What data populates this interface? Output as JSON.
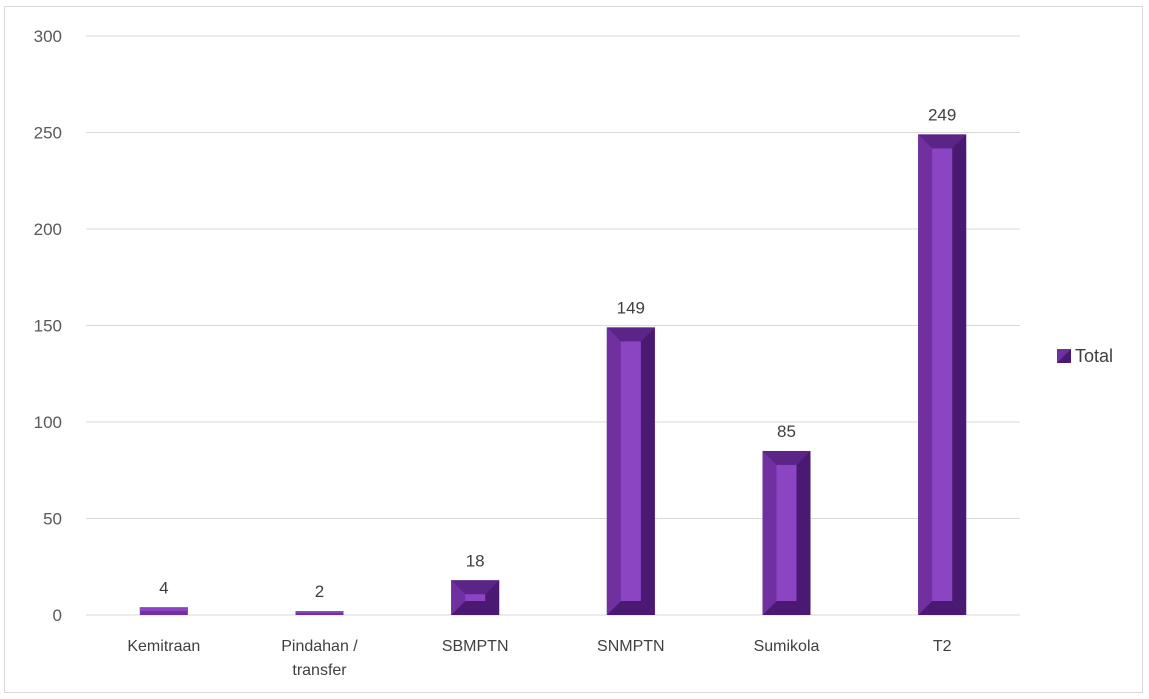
{
  "chart_data": {
    "type": "bar",
    "categories": [
      "Kemitraan",
      "Pindahan / transfer",
      "SBMPTN",
      "SNMPTN",
      "Sumikola",
      "T2"
    ],
    "category_lines": [
      [
        "Kemitraan"
      ],
      [
        "Pindahan /",
        "transfer"
      ],
      [
        "SBMPTN"
      ],
      [
        "SNMPTN"
      ],
      [
        "Sumikola"
      ],
      [
        "T2"
      ]
    ],
    "series": [
      {
        "name": "Total",
        "values": [
          4,
          2,
          18,
          149,
          85,
          249
        ]
      }
    ],
    "data_labels": [
      "4",
      "2",
      "18",
      "149",
      "85",
      "249"
    ],
    "ylim": [
      0,
      300
    ],
    "yticks": [
      0,
      50,
      100,
      150,
      200,
      250,
      300
    ],
    "ytick_labels": [
      "0",
      "50",
      "100",
      "150",
      "200",
      "250",
      "300"
    ],
    "grid": true,
    "legend_position": "right",
    "colors": {
      "bar_front": "#7030A0",
      "bar_highlight": "#8B44C2",
      "bar_dark": "#4A1A72",
      "bar_top": "#5B2487",
      "grid": "#d9d9d9"
    }
  }
}
